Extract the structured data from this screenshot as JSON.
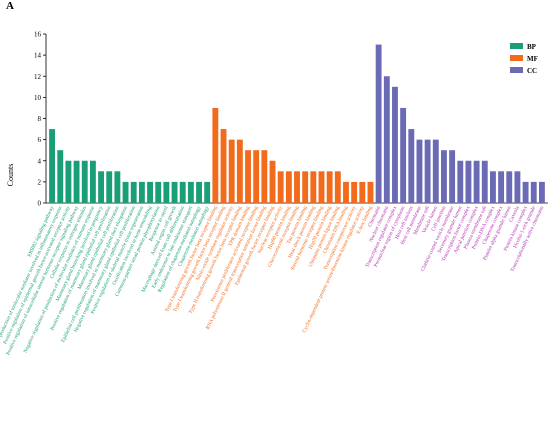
{
  "panel_label": "A",
  "chart_data": {
    "type": "bar",
    "title": "",
    "xlabel": "",
    "ylabel": "Counts",
    "ylim": [
      0,
      16
    ],
    "yticks": [
      0,
      2,
      4,
      6,
      8,
      10,
      12,
      14,
      16
    ],
    "legend_position": "top-right",
    "grid": false,
    "series": [
      {
        "name": "BP",
        "color": "#1a9e77",
        "label_color": "#1a9e77",
        "categories": [
          "ERBB2 signaling pathway",
          "Regulation of production of molecular mediator involved in inflammatory response",
          "Positive regulation of epidermal growth factor-activated receptor activity",
          "Positive regulation of intracellular steroid hormone receptor signaling pathway",
          "Cellular response to estrogen stimulus",
          "Negative regulation of production of molecular mediator of immune response",
          "Mammary gland branching involved in pregnancy",
          "Positive regulation of mammary gland epithelial cell proliferation",
          "Mammary gland epithelial cell proliferation",
          "Epithelial cell proliferation involved in mammary gland duct elongation",
          "Negative regulation of mammary gland epithelial cell proliferation",
          "Positive regulation of skeletal muscle tissue regeneration",
          "Ossification involved in bone remodeling",
          "Common-partner smad protein phosphorylation",
          "Response to sterol",
          "Animal organ cell growth",
          "Macrophage derived foam cell differentiation",
          "Early endosome to late endosome transport",
          "Regulation of chaperone-mediated autophagy",
          "Chaperone-mediated autophagy"
        ],
        "values": [
          7,
          5,
          4,
          4,
          4,
          4,
          3,
          3,
          3,
          2,
          2,
          2,
          2,
          2,
          2,
          2,
          2,
          2,
          2,
          2
        ]
      },
      {
        "name": "MF",
        "color": "#f26a1b",
        "label_color": "#f26a1b",
        "categories": [
          "Type I transforming growth factor beta receptor binding",
          "Type I transforming growth factor beta receptor binding",
          "Nitric-oxide synthase regulator activity",
          "Type II transforming growth factor beta receptor binding",
          "TPR domain binding",
          "Peroxisome proliferator activated receptor binding",
          "RNA polymerase II general transcription initiation factor binding",
          "Epidermal growth factor receptor binding",
          "Nuclear receptor activity",
          "Hsp90 protein binding",
          "Glucocorticoid receptor binding",
          "Tau protein binding",
          "Heat shock protein binding",
          "Steroid hormone receptor binding",
          "Hsp70 protein binding",
          "Ubiquitin protein ligase binding",
          "Chromatin DNA binding",
          "Transcription corepressor activity",
          "Cyclin-dependent protein serine/threonine kinase regulator activity",
          "E-box binding"
        ],
        "values": [
          9,
          7,
          6,
          6,
          5,
          5,
          5,
          4,
          3,
          3,
          3,
          3,
          3,
          3,
          3,
          3,
          2,
          2,
          2,
          2
        ]
      },
      {
        "name": "CC",
        "color": "#6b6bb5",
        "label_color": "#b233b2",
        "categories": [
          "Chromatin",
          "Nuclear chromatin",
          "Transcription regulator complex",
          "Perinuclear region of cytoplasm",
          "Host cell nucleus",
          "Host cell membrane",
          "Membrane raft",
          "Vesicle lumen",
          "Cell junction",
          "Clathrin-coated vesicle membrane",
          "Secretory granule lumen",
          "Transcription factor complex",
          "Apical junction complex",
          "Plasma membrane raft",
          "Protein-DNA complex",
          "Chaperone complex",
          "Platelet alpha granule lumen",
          "Caveola",
          "Protein kinase complex",
          "Ficolin-1-rich granule",
          "Transcriptionally active chromatin"
        ],
        "values": [
          15,
          12,
          11,
          9,
          7,
          6,
          6,
          6,
          5,
          5,
          4,
          4,
          4,
          4,
          3,
          3,
          3,
          3,
          2,
          2,
          2
        ]
      }
    ]
  }
}
